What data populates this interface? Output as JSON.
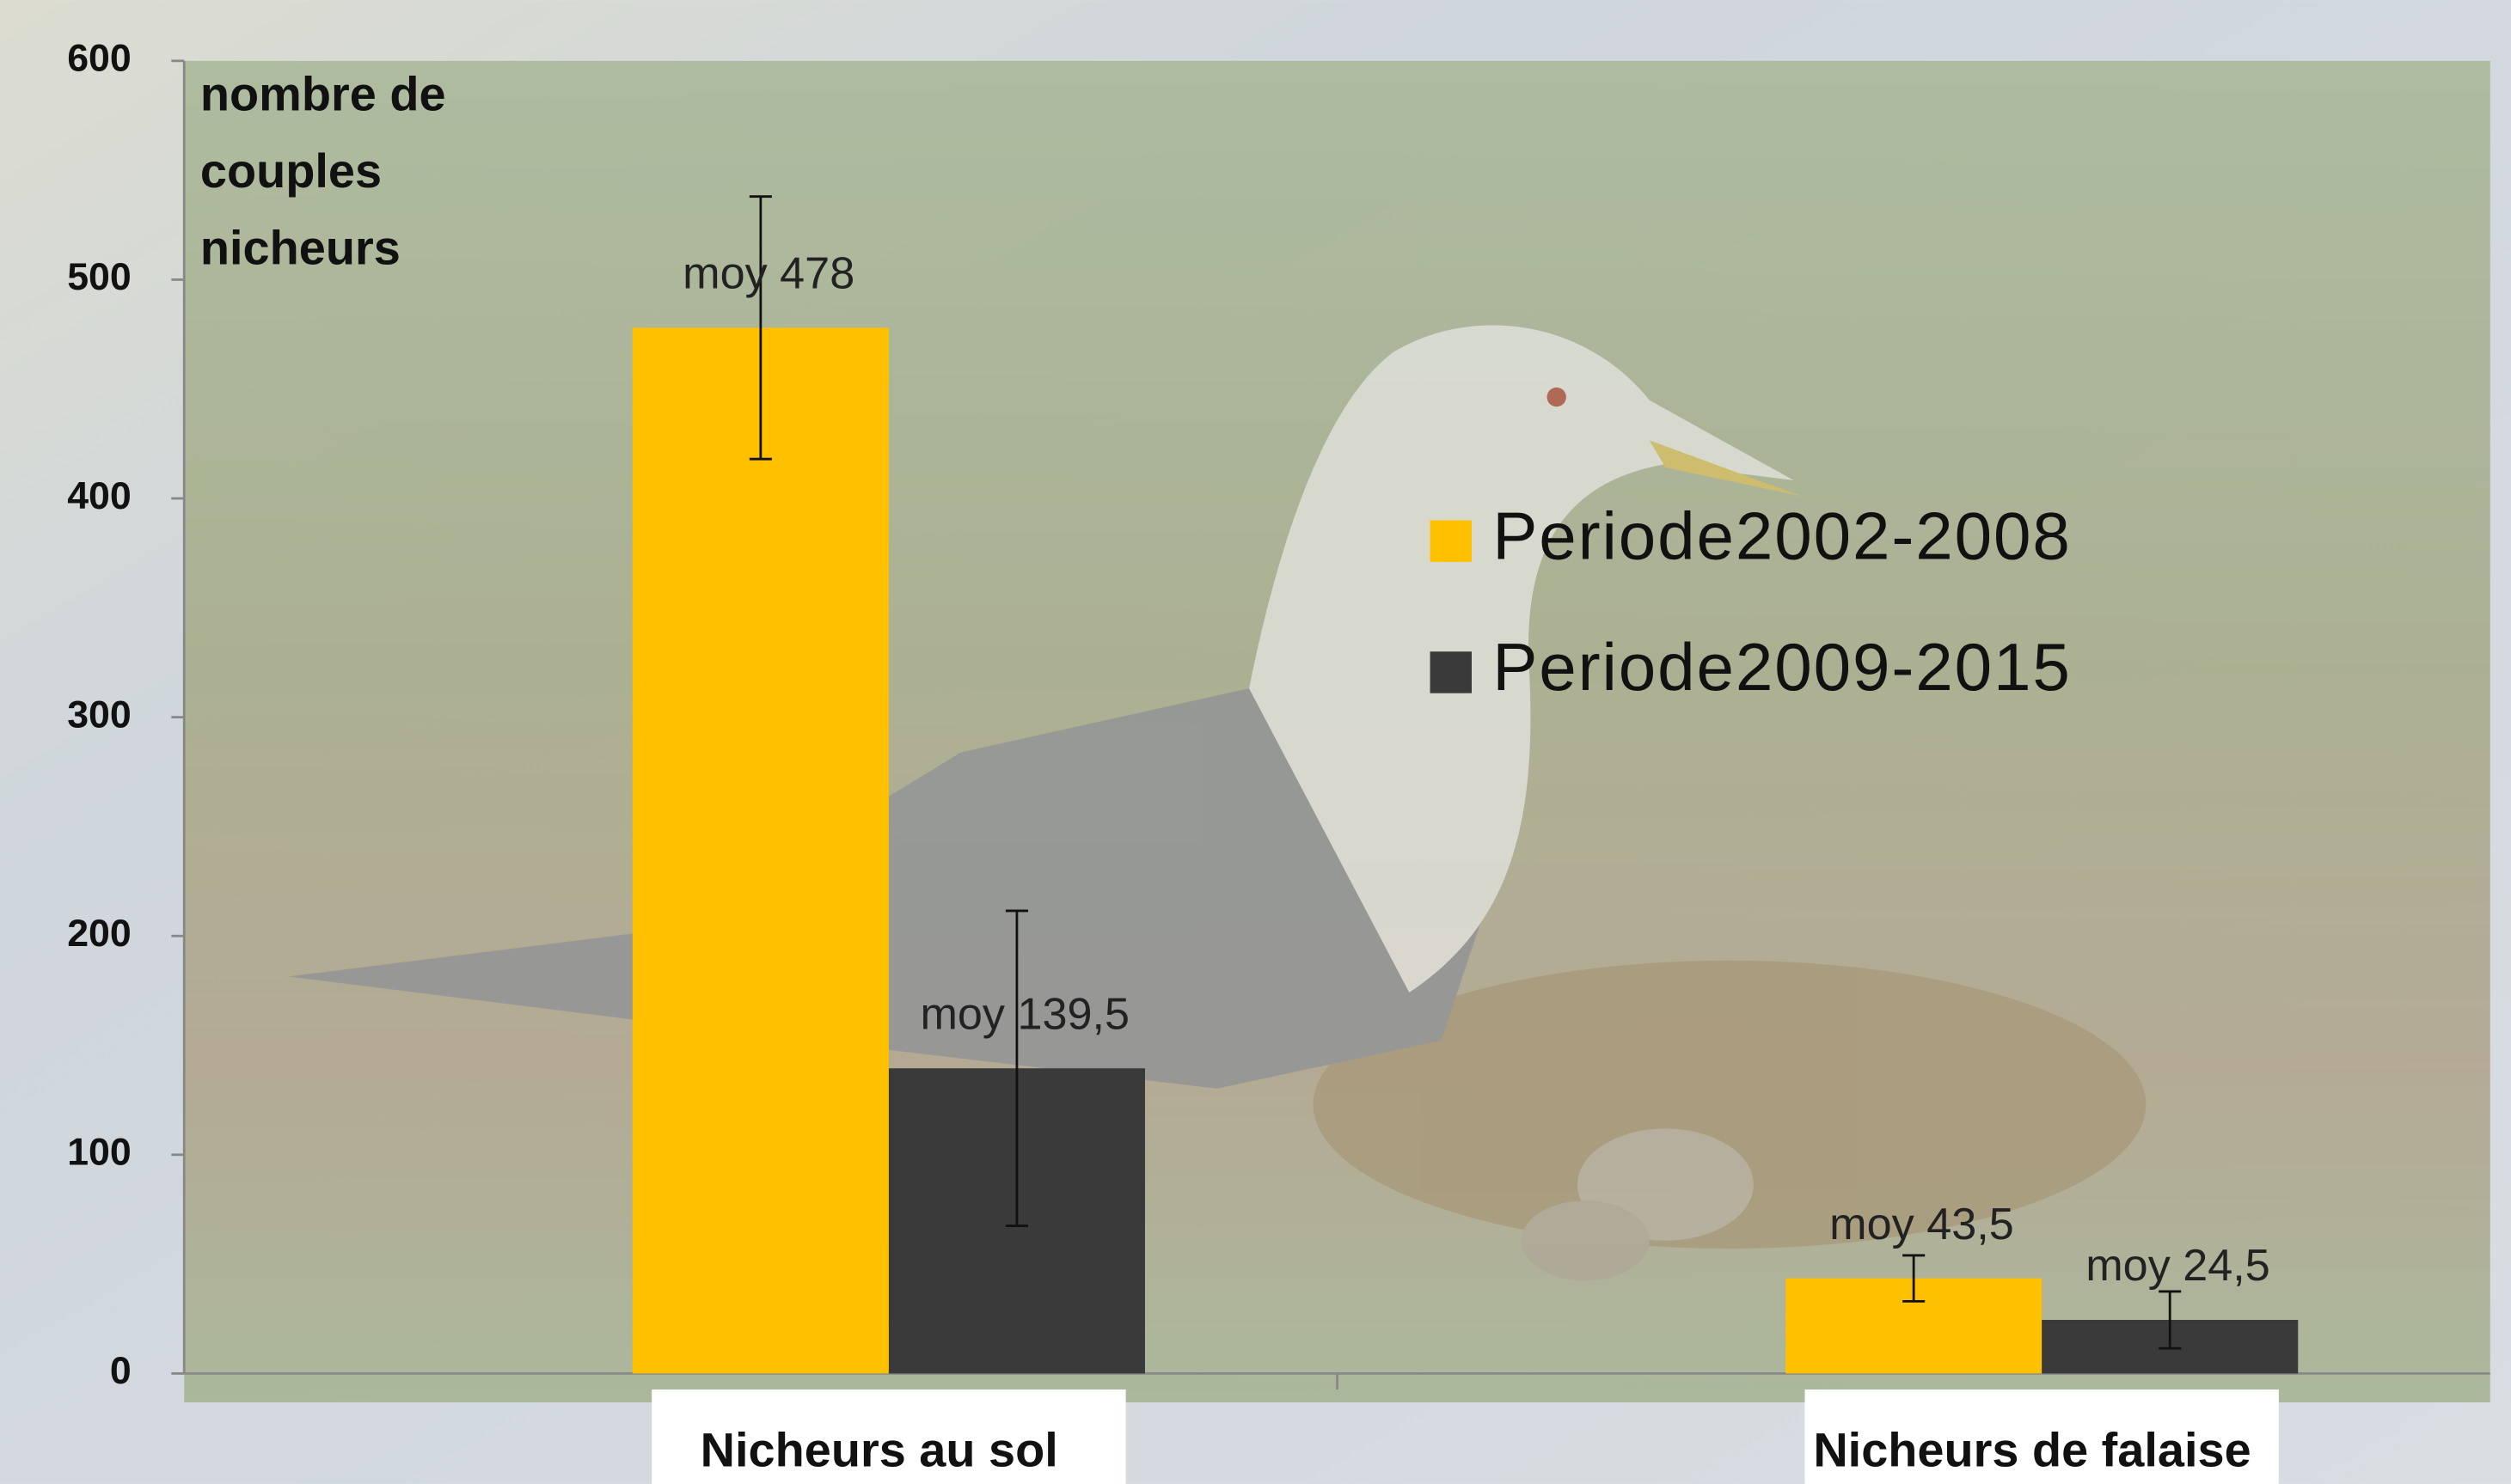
{
  "chart_data": {
    "type": "bar",
    "y_label": "nombre de couples nicheurs",
    "categories": [
      "Nicheurs au sol",
      "Nicheurs de falaise"
    ],
    "series": [
      {
        "name": "Periode2002-2008",
        "color": "#ffc000",
        "values": [
          478,
          43.5
        ],
        "errors": [
          60,
          10.5
        ],
        "value_labels": [
          "moy 478",
          "moy 43,5"
        ]
      },
      {
        "name": "Periode2009-2015",
        "color": "#3a3a3a",
        "values": [
          139.5,
          24.5
        ],
        "errors": [
          72,
          13
        ],
        "value_labels": [
          "moy 139,5",
          "moy 24,5"
        ]
      }
    ],
    "ylim": [
      0,
      600
    ],
    "yticks": [
      0,
      100,
      200,
      300,
      400,
      500,
      600
    ]
  }
}
